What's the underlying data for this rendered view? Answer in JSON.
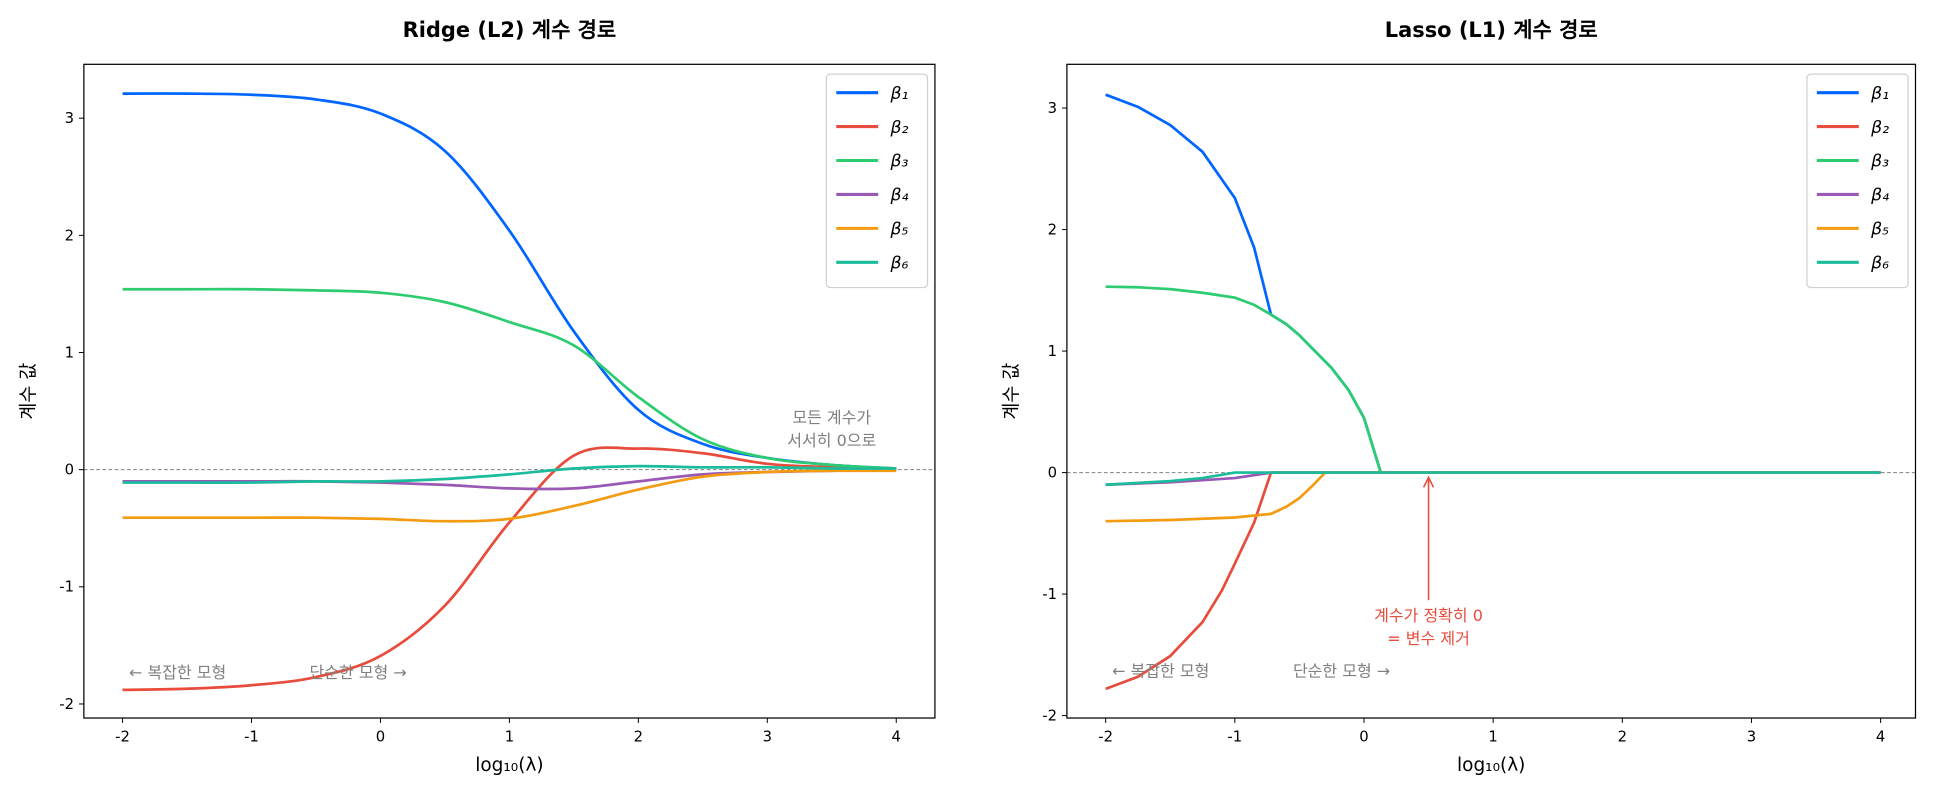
{
  "chart_data": [
    {
      "type": "line",
      "title": "Ridge (L2) 계수 경로",
      "xlabel": "log₁₀(λ)",
      "ylabel": "계수 값",
      "xlim": [
        -2.3,
        4.3
      ],
      "ylim": [
        -2.12,
        3.46
      ],
      "xticks": [
        -2,
        -1,
        0,
        1,
        2,
        3,
        4
      ],
      "yticks": [
        -2,
        -1,
        0,
        1,
        2,
        3
      ],
      "grid": false,
      "legend": "top-right",
      "smooth": true,
      "zero_line": true,
      "series": [
        {
          "name": "β₁",
          "color": "#0066ff",
          "x": [
            -2,
            -1.5,
            -1,
            -0.5,
            0,
            0.5,
            1,
            1.5,
            2,
            2.5,
            3,
            3.5,
            4
          ],
          "y": [
            3.21,
            3.21,
            3.2,
            3.16,
            3.04,
            2.72,
            2.04,
            1.18,
            0.51,
            0.22,
            0.1,
            0.04,
            0.01
          ]
        },
        {
          "name": "β₂",
          "color": "#e74c3c",
          "x": [
            -2,
            -1.5,
            -1,
            -0.5,
            0,
            0.5,
            1,
            1.5,
            2,
            2.5,
            3,
            3.5,
            4
          ],
          "y": [
            -1.88,
            -1.87,
            -1.84,
            -1.77,
            -1.59,
            -1.16,
            -0.45,
            0.12,
            0.18,
            0.14,
            0.05,
            0.02,
            0
          ]
        },
        {
          "name": "β₃",
          "color": "#2ecc71",
          "x": [
            -2,
            -1.5,
            -1,
            -0.5,
            0,
            0.5,
            1,
            1.5,
            2,
            2.5,
            3,
            3.5,
            4
          ],
          "y": [
            1.54,
            1.54,
            1.54,
            1.53,
            1.51,
            1.43,
            1.26,
            1.06,
            0.62,
            0.26,
            0.1,
            0.04,
            0.01
          ]
        },
        {
          "name": "β₄",
          "color": "#9b59b6",
          "x": [
            -2,
            -1.5,
            -1,
            -0.5,
            0,
            0.5,
            1,
            1.5,
            2,
            2.5,
            3,
            3.5,
            4
          ],
          "y": [
            -0.1,
            -0.1,
            -0.1,
            -0.1,
            -0.11,
            -0.13,
            -0.16,
            -0.16,
            -0.1,
            -0.04,
            -0.02,
            -0.01,
            0
          ]
        },
        {
          "name": "β₅",
          "color": "#f39c12",
          "x": [
            -2,
            -1.5,
            -1,
            -0.5,
            0,
            0.5,
            1,
            1.5,
            2,
            2.5,
            3,
            3.5,
            4
          ],
          "y": [
            -0.41,
            -0.41,
            -0.41,
            -0.41,
            -0.42,
            -0.44,
            -0.42,
            -0.31,
            -0.17,
            -0.06,
            -0.02,
            -0.01,
            -0.01
          ]
        },
        {
          "name": "β₆",
          "color": "#1abc9c",
          "x": [
            -2,
            -1.5,
            -1,
            -0.5,
            0,
            0.5,
            1,
            1.5,
            2,
            2.5,
            3,
            3.5,
            4
          ],
          "y": [
            -0.11,
            -0.11,
            -0.11,
            -0.1,
            -0.1,
            -0.08,
            -0.04,
            0.01,
            0.03,
            0.02,
            0.02,
            0.01,
            0.01
          ]
        }
      ],
      "annotations": [
        {
          "text": "모든 계수가",
          "x": 3.5,
          "y": 0.4,
          "color": "#808080",
          "align": "center"
        },
        {
          "text": "서서히 0으로",
          "x": 3.5,
          "y": 0.2,
          "color": "#808080",
          "align": "center"
        },
        {
          "text": "← 복잡한 모형",
          "x": -1.95,
          "y": -1.78,
          "color": "#808080",
          "align": "start"
        },
        {
          "text": "단순한 모형 →",
          "x": -0.55,
          "y": -1.78,
          "color": "#808080",
          "align": "start"
        }
      ]
    },
    {
      "type": "line",
      "title": "Lasso (L1) 계수 경로",
      "xlabel": "log₁₀(λ)",
      "ylabel": "계수 값",
      "xlim": [
        -2.3,
        4.27
      ],
      "ylim": [
        -2.02,
        3.36
      ],
      "xticks": [
        -2,
        -1,
        0,
        1,
        2,
        3,
        4
      ],
      "yticks": [
        -2,
        -1,
        0,
        1,
        2,
        3
      ],
      "grid": false,
      "legend": "top-right",
      "smooth": false,
      "zero_line": true,
      "series": [
        {
          "name": "β₁",
          "color": "#0066ff",
          "x": [
            -2,
            -1.75,
            -1.5,
            -1.25,
            -1,
            -0.85,
            -0.72,
            -0.6,
            -0.5,
            -0.25,
            -0.12,
            0,
            0.13,
            4
          ],
          "y": [
            3.11,
            3.01,
            2.86,
            2.64,
            2.26,
            1.85,
            1.3,
            1.22,
            1.13,
            0.86,
            0.68,
            0.45,
            0,
            0
          ]
        },
        {
          "name": "β₂",
          "color": "#e74c3c",
          "x": [
            -2,
            -1.75,
            -1.5,
            -1.25,
            -1.1,
            -1,
            -0.85,
            -0.72,
            4
          ],
          "y": [
            -1.78,
            -1.68,
            -1.51,
            -1.23,
            -0.97,
            -0.75,
            -0.41,
            0,
            0
          ]
        },
        {
          "name": "β₃",
          "color": "#2ecc71",
          "x": [
            -2,
            -1.75,
            -1.5,
            -1.25,
            -1,
            -0.85,
            -0.72,
            -0.6,
            -0.5,
            -0.25,
            -0.12,
            0,
            0.13,
            4
          ],
          "y": [
            1.53,
            1.525,
            1.51,
            1.48,
            1.44,
            1.38,
            1.3,
            1.22,
            1.13,
            0.86,
            0.68,
            0.45,
            0,
            0
          ]
        },
        {
          "name": "β₄",
          "color": "#9b59b6",
          "x": [
            -2,
            -1.5,
            -1,
            -0.72,
            4
          ],
          "y": [
            -0.1,
            -0.08,
            -0.045,
            0,
            0
          ]
        },
        {
          "name": "β₅",
          "color": "#f39c12",
          "x": [
            -2,
            -1.5,
            -1,
            -0.72,
            -0.6,
            -0.5,
            -0.4,
            -0.3,
            4
          ],
          "y": [
            -0.4,
            -0.39,
            -0.37,
            -0.34,
            -0.28,
            -0.21,
            -0.11,
            0,
            0
          ]
        },
        {
          "name": "β₆",
          "color": "#1abc9c",
          "x": [
            -2,
            -1.5,
            -1.25,
            -1,
            4
          ],
          "y": [
            -0.1,
            -0.07,
            -0.045,
            0,
            0
          ]
        }
      ],
      "annotations": [
        {
          "text": "계수가 정확히 0",
          "x": 0.5,
          "y": -1.22,
          "color": "#e74c3c",
          "align": "center"
        },
        {
          "text": "= 변수 제거",
          "x": 0.5,
          "y": -1.41,
          "color": "#e74c3c",
          "align": "center"
        },
        {
          "text": "← 복잡한 모형",
          "x": -1.95,
          "y": -1.68,
          "color": "#808080",
          "align": "start"
        },
        {
          "text": "단순한 모형 →",
          "x": -0.55,
          "y": -1.68,
          "color": "#808080",
          "align": "start"
        }
      ],
      "arrow": {
        "from": [
          0.5,
          -1.05
        ],
        "to": [
          0.5,
          -0.04
        ],
        "color": "#e74c3c"
      }
    }
  ]
}
